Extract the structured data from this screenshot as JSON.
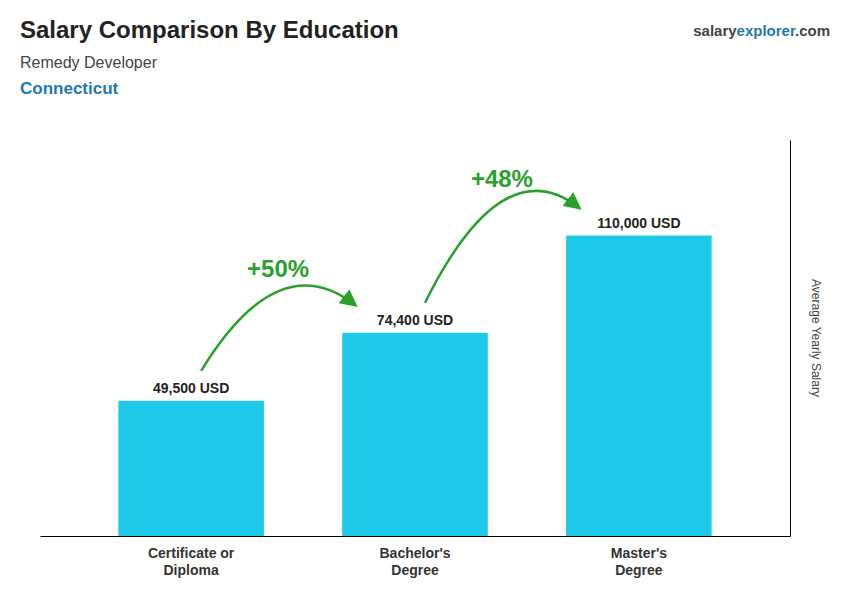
{
  "chart_data": {
    "type": "bar",
    "title": "Salary Comparison By Education",
    "subtitle": [
      "Remedy Developer",
      "Connecticut"
    ],
    "source": [
      "salary",
      "explorer",
      ".com"
    ],
    "y_label": "Average Yearly Salary",
    "categories": [
      "Certificate or\nDiploma",
      "Bachelor's\nDegree",
      "Master's\nDegree"
    ],
    "values": [
      49500,
      74400,
      110000
    ],
    "value_labels": [
      "49,500 USD",
      "74,400 USD",
      "110,000 USD"
    ],
    "data_labels": true,
    "annotations": [
      "+50%",
      "+48%"
    ],
    "color": "#1ec8e8",
    "ylim": [
      0,
      145000
    ],
    "tick_labels": "x",
    "grid": false
  }
}
